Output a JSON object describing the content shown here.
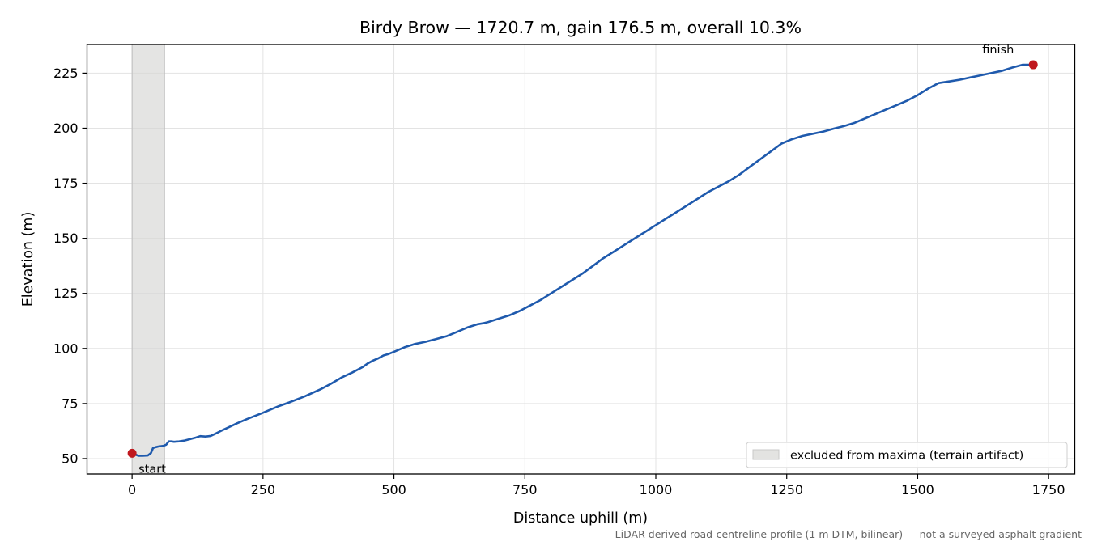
{
  "chart_data": {
    "type": "line",
    "title": "Birdy Brow — 1720.7 m, gain 176.5 m, overall 10.3%",
    "xlabel": "Distance uphill (m)",
    "ylabel": "Elevation (m)",
    "xlim": [
      -86,
      1800
    ],
    "ylim": [
      43,
      238
    ],
    "xticks": [
      0,
      250,
      500,
      750,
      1000,
      1250,
      1500,
      1750
    ],
    "yticks": [
      50,
      75,
      100,
      125,
      150,
      175,
      200,
      225
    ],
    "grid": true,
    "series": [
      {
        "color": "#1f5aad",
        "x": [
          0,
          12,
          20,
          30,
          36,
          40,
          45,
          50,
          60,
          65,
          70,
          75,
          80,
          90,
          100,
          110,
          120,
          130,
          140,
          150,
          160,
          170,
          180,
          200,
          220,
          250,
          280,
          300,
          330,
          360,
          380,
          400,
          420,
          440,
          450,
          460,
          470,
          480,
          490,
          500,
          520,
          540,
          560,
          580,
          600,
          620,
          640,
          660,
          670,
          680,
          700,
          720,
          740,
          760,
          780,
          800,
          820,
          840,
          860,
          880,
          900,
          920,
          940,
          960,
          980,
          1000,
          1020,
          1040,
          1060,
          1080,
          1100,
          1120,
          1140,
          1160,
          1180,
          1200,
          1220,
          1240,
          1260,
          1280,
          1300,
          1320,
          1340,
          1360,
          1380,
          1400,
          1420,
          1440,
          1460,
          1480,
          1500,
          1520,
          1540,
          1560,
          1580,
          1600,
          1620,
          1640,
          1660,
          1680,
          1700,
          1720.7
        ],
        "y": [
          52.4,
          51.3,
          51.3,
          51.4,
          52.5,
          54.8,
          55.2,
          55.5,
          55.8,
          56.3,
          57.8,
          57.8,
          57.6,
          57.8,
          58.2,
          58.8,
          59.4,
          60.2,
          60.0,
          60.3,
          61.4,
          62.6,
          63.7,
          66.0,
          68.0,
          70.8,
          73.8,
          75.5,
          78.3,
          81.5,
          84.0,
          86.8,
          89.0,
          91.5,
          93.2,
          94.5,
          95.5,
          96.8,
          97.5,
          98.5,
          100.5,
          102.0,
          103.0,
          104.2,
          105.5,
          107.5,
          109.5,
          111.0,
          111.4,
          112.0,
          113.5,
          115.0,
          117.0,
          119.5,
          122.0,
          125.0,
          128.0,
          131.0,
          134.0,
          137.5,
          141.0,
          144.0,
          147.0,
          150.0,
          153.0,
          156.0,
          159.0,
          162.0,
          165.0,
          168.0,
          171.0,
          173.5,
          176.0,
          179.0,
          182.5,
          186.0,
          189.5,
          193.0,
          195.0,
          196.5,
          197.5,
          198.5,
          199.8,
          201.0,
          202.5,
          204.5,
          206.5,
          208.5,
          210.5,
          212.5,
          215.0,
          218.0,
          220.5,
          221.2,
          222.0,
          223.0,
          224.0,
          225.0,
          226.0,
          227.5,
          228.8,
          228.8
        ]
      }
    ],
    "points": [
      {
        "x": 0,
        "y": 52.4,
        "label": "start",
        "color": "#c0181e"
      },
      {
        "x": 1720.7,
        "y": 228.8,
        "label": "finish",
        "color": "#c0181e"
      }
    ],
    "shaded_region": {
      "x_start": 0,
      "x_end": 62,
      "color": "#d6d6d4"
    },
    "legend": {
      "position": "lower right",
      "entries": [
        "excluded from maxima (terrain artifact)"
      ]
    },
    "footnote": "LiDAR-derived road-centreline profile (1 m DTM, bilinear) — not a surveyed asphalt gradient"
  }
}
